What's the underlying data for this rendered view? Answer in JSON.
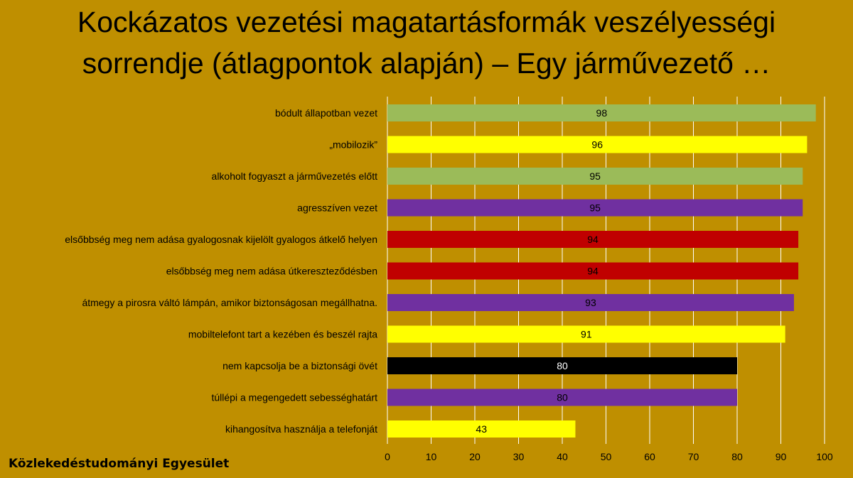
{
  "slide": {
    "title_line1": "Kockázatos vezetési magatartásformák veszélyességi",
    "title_line2": "sorrendje (átlagpontok alapján) – Egy járművezető …",
    "footer": "Közlekedéstudományi Egyesület"
  },
  "colors": {
    "background": "#bf8f00",
    "green": "#9bbb59",
    "yellow": "#ffff00",
    "purple": "#7030a0",
    "red": "#c00000",
    "black": "#000000",
    "grid": "#ffffff"
  },
  "chart_data": {
    "type": "bar",
    "orientation": "horizontal",
    "categories": [
      "bódult állapotban vezet",
      "„mobilozik”",
      "alkoholt fogyaszt a járművezetés előtt",
      "agresszíven vezet",
      "elsőbbség meg nem adása gyalogosnak kijelölt gyalogos átkelő helyen",
      "elsőbbség meg nem adása útkereszteződésben",
      "átmegy a pirosra váltó lámpán, amikor biztonságosan megállhatna.",
      "mobiltelefont tart a kezében és beszél rajta",
      "nem kapcsolja be a biztonsági övét",
      "túllépi a megengedett sebességhatárt",
      "kihangosítva használja a telefonját"
    ],
    "values": [
      98,
      96,
      95,
      95,
      94,
      94,
      93,
      91,
      80,
      80,
      43
    ],
    "bar_colors": [
      "green",
      "yellow",
      "green",
      "purple",
      "red",
      "red",
      "purple",
      "yellow",
      "black",
      "purple",
      "yellow"
    ],
    "xlim": [
      0,
      100
    ],
    "xticks": [
      0,
      10,
      20,
      30,
      40,
      50,
      60,
      70,
      80,
      90,
      100
    ],
    "grid": "vertical",
    "data_labels": true
  }
}
